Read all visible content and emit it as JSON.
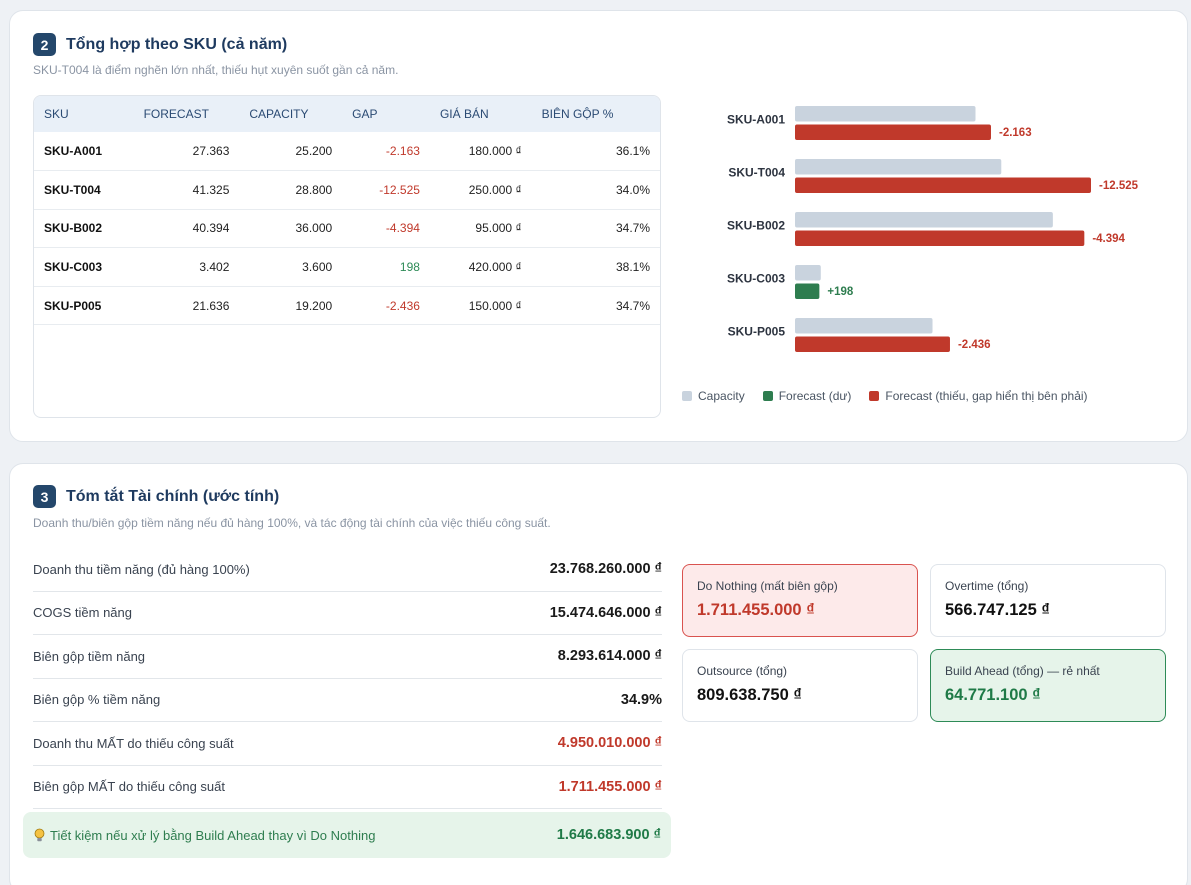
{
  "sku_section": {
    "number": "2",
    "title": "Tổng hợp theo SKU (cả năm)",
    "subtitle": "SKU-T004 là điểm nghẽn lớn nhất, thiếu hụt xuyên suốt gần cả năm.",
    "headers": [
      "SKU",
      "FORECAST",
      "CAPACITY",
      "GAP",
      "GIÁ BÁN",
      "BIÊN GỘP %"
    ],
    "rows": [
      {
        "sku": "SKU-A001",
        "forecast": "27.363",
        "capacity": "25.200",
        "gap": "-2.163",
        "price": "180.000 ₫",
        "margin": "36.1%"
      },
      {
        "sku": "SKU-T004",
        "forecast": "41.325",
        "capacity": "28.800",
        "gap": "-12.525",
        "price": "250.000 ₫",
        "margin": "34.0%"
      },
      {
        "sku": "SKU-B002",
        "forecast": "40.394",
        "capacity": "36.000",
        "gap": "-4.394",
        "price": "95.000 ₫",
        "margin": "34.7%"
      },
      {
        "sku": "SKU-C003",
        "forecast": "3.402",
        "capacity": "3.600",
        "gap": "198",
        "price": "420.000 ₫",
        "margin": "38.1%"
      },
      {
        "sku": "SKU-P005",
        "forecast": "21.636",
        "capacity": "19.200",
        "gap": "-2.436",
        "price": "150.000 ₫",
        "margin": "34.7%"
      }
    ],
    "legend": {
      "capacity": "Capacity",
      "surplus": "Forecast (dư)",
      "shortage": "Forecast (thiếu, gap hiển thị bên phải)"
    }
  },
  "chart_data": {
    "type": "bar",
    "orientation": "horizontal",
    "categories": [
      "SKU-A001",
      "SKU-T004",
      "SKU-B002",
      "SKU-C003",
      "SKU-P005"
    ],
    "series": [
      {
        "name": "Capacity",
        "values": [
          25200,
          28800,
          36000,
          3600,
          19200
        ]
      },
      {
        "name": "Forecast",
        "values": [
          27363,
          41325,
          40394,
          3402,
          21636
        ]
      }
    ],
    "gap_labels": [
      "-2.163",
      "-12.525",
      "-4.394",
      "+198",
      "-2.436"
    ],
    "gap_status": [
      "short",
      "short",
      "short",
      "surplus",
      "short"
    ],
    "legend_position": "bottom",
    "colors": {
      "capacity": "#c9d3de",
      "shortage": "#c0392b",
      "surplus": "#2e7d4f"
    }
  },
  "finance_section": {
    "number": "3",
    "title": "Tóm tắt Tài chính (ước tính)",
    "subtitle": "Doanh thu/biên gộp tiềm năng nếu đủ hàng 100%, và tác động tài chính của việc thiếu công suất.",
    "rows": [
      {
        "label": "Doanh thu tiềm năng (đủ hàng 100%)",
        "value": "23.768.260.000 ₫",
        "style": "normal"
      },
      {
        "label": "COGS tiềm năng",
        "value": "15.474.646.000 ₫",
        "style": "normal"
      },
      {
        "label": "Biên gộp tiềm năng",
        "value": "8.293.614.000 ₫",
        "style": "normal"
      },
      {
        "label": "Biên gộp % tiềm năng",
        "value": "34.9%",
        "style": "normal"
      },
      {
        "label": "Doanh thu MẤT do thiếu công suất",
        "value": "4.950.010.000 ₫",
        "style": "red"
      },
      {
        "label": "Biên gộp MẤT do thiếu công suất",
        "value": "1.711.455.000 ₫",
        "style": "red"
      }
    ],
    "savings": {
      "label": "Tiết kiệm nếu xử lý bằng Build Ahead thay vì Do Nothing",
      "value": "1.646.683.900 ₫"
    },
    "boxes": {
      "do_nothing": {
        "label": "Do Nothing (mất biên gộp)",
        "value": "1.711.455.000 ₫"
      },
      "overtime": {
        "label": "Overtime (tổng)",
        "value": "566.747.125 ₫"
      },
      "outsource": {
        "label": "Outsource (tổng)",
        "value": "809.638.750 ₫"
      },
      "build_ahead": {
        "label": "Build Ahead (tổng) — rẻ nhất",
        "value": "64.771.100 ₫"
      }
    }
  }
}
